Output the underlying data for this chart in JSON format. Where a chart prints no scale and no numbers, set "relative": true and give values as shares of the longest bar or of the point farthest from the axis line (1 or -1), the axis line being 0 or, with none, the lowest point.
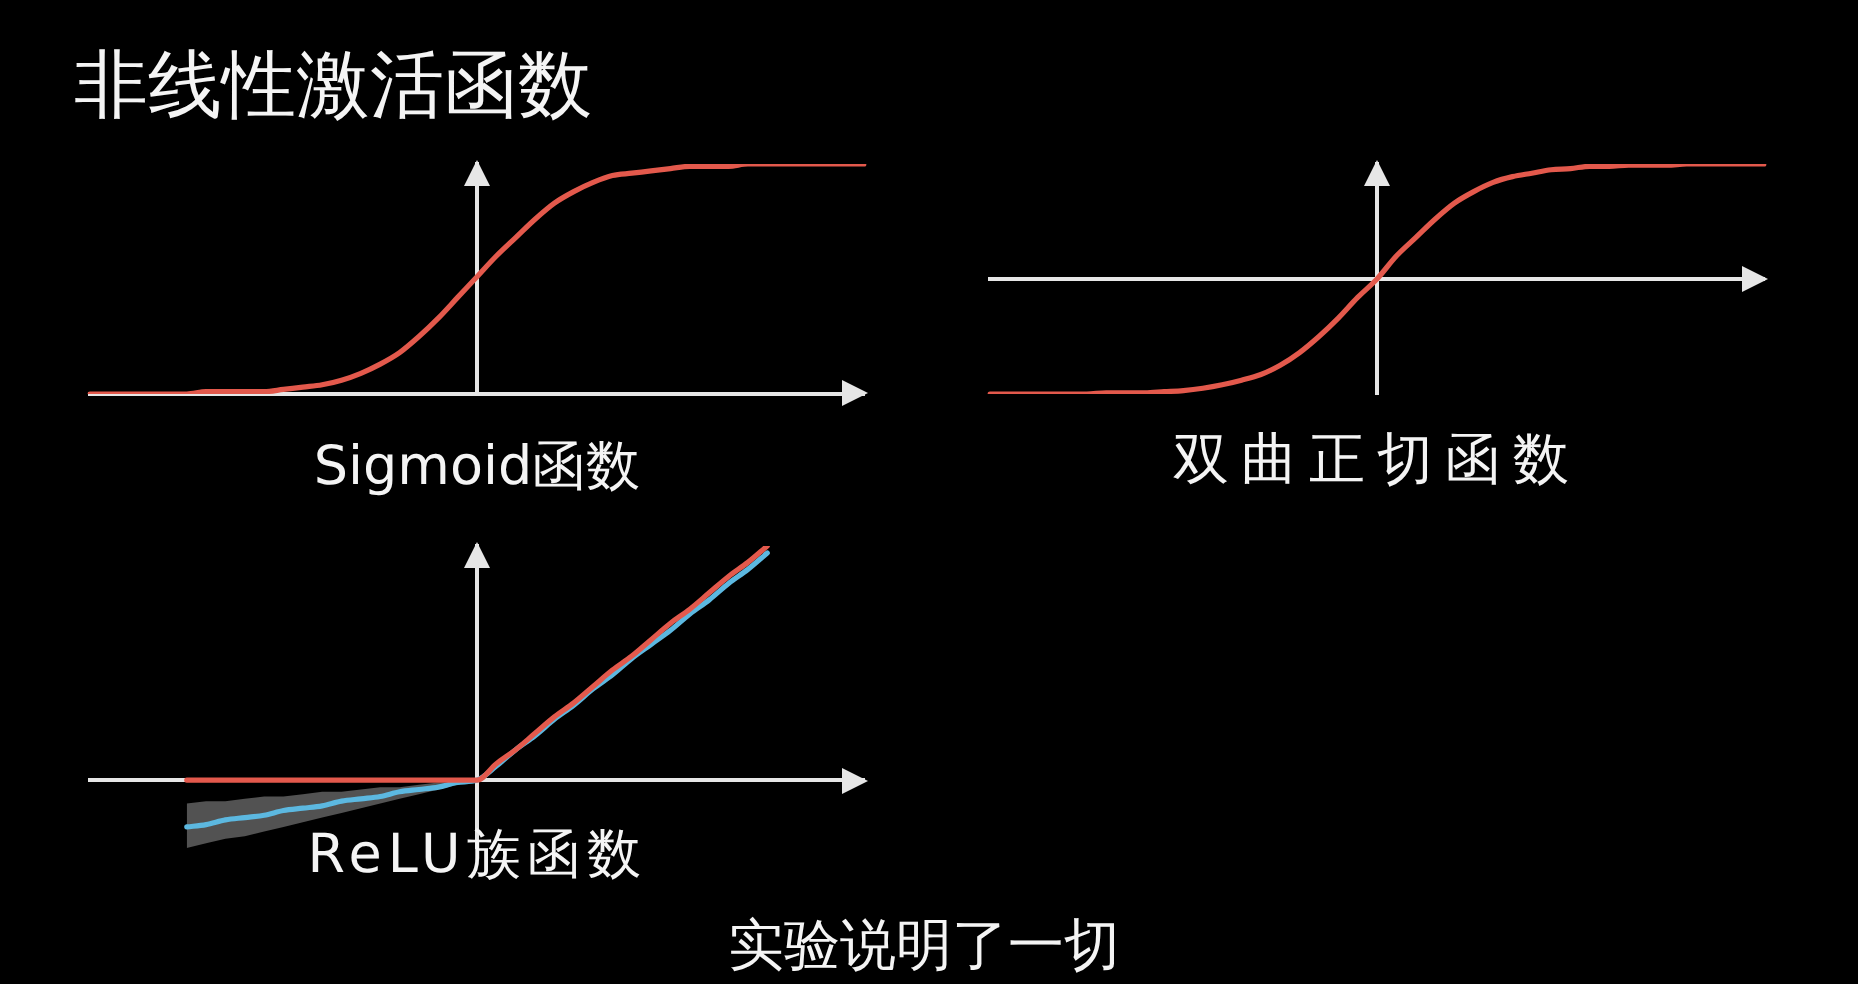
{
  "chart_data": [
    {
      "type": "line",
      "title": "非线性激活函数",
      "xlabel": "Sigmoid函数",
      "relative": true,
      "categories": [
        null,
        null,
        null,
        null,
        null,
        null,
        null,
        null,
        null,
        null,
        null,
        null,
        null,
        null,
        null,
        null,
        null,
        null,
        null,
        null,
        null,
        null,
        null,
        null,
        null,
        null,
        null,
        null,
        null,
        null,
        null,
        null,
        null,
        null,
        null,
        null,
        null,
        null,
        null,
        null,
        null
      ],
      "series": [
        {
          "color": "#e3594c",
          "values": [
            0,
            0,
            0,
            0,
            0,
            0,
            0.01,
            0.01,
            0.01,
            0.01,
            0.02,
            0.03,
            0.04,
            0.06,
            0.09,
            0.13,
            0.18,
            0.25,
            0.33,
            0.42,
            0.51,
            0.6,
            0.68,
            0.76,
            0.83,
            0.88,
            0.92,
            0.95,
            0.96,
            0.97,
            0.98,
            0.99,
            0.99,
            0.99,
            1,
            1,
            1,
            1,
            1,
            1,
            1
          ]
        }
      ]
    },
    {
      "type": "line",
      "xlabel": "双曲正切函数",
      "relative": true,
      "categories": [
        null,
        null,
        null,
        null,
        null,
        null,
        null,
        null,
        null,
        null,
        null,
        null,
        null,
        null,
        null,
        null,
        null,
        null,
        null,
        null,
        null,
        null,
        null,
        null,
        null,
        null,
        null,
        null,
        null,
        null,
        null,
        null,
        null,
        null,
        null,
        null,
        null,
        null,
        null,
        null,
        null
      ],
      "series": [
        {
          "color": "#e3594c",
          "values": [
            -1,
            -1,
            -1,
            -1,
            -1,
            -1,
            -0.99,
            -0.99,
            -0.99,
            -0.98,
            -0.97,
            -0.95,
            -0.92,
            -0.88,
            -0.83,
            -0.75,
            -0.64,
            -0.5,
            -0.34,
            -0.16,
            0,
            0.2,
            0.36,
            0.52,
            0.66,
            0.76,
            0.84,
            0.89,
            0.92,
            0.95,
            0.96,
            0.98,
            0.98,
            0.99,
            0.99,
            0.99,
            1,
            1,
            1,
            1,
            1
          ]
        }
      ]
    },
    {
      "type": "line",
      "xlabel": "ReLU族函数",
      "annotations": [
        "实验说明了一切"
      ],
      "relative": true,
      "categories": [
        null,
        null,
        null,
        null,
        null,
        null,
        null,
        null,
        null,
        null,
        null,
        null,
        null,
        null,
        null,
        null,
        null,
        null,
        null,
        null,
        null,
        null,
        null,
        null,
        null,
        null,
        null,
        null,
        null,
        null,
        null,
        null,
        null,
        null,
        null,
        null,
        null,
        null,
        null,
        null,
        null
      ],
      "series": [
        {
          "color": "#e3594c",
          "values": [
            null,
            null,
            null,
            null,
            null,
            0,
            0,
            0,
            0,
            0,
            0,
            0,
            0,
            0,
            0,
            0,
            0,
            0,
            0,
            0,
            0,
            0.07,
            0.13,
            0.2,
            0.27,
            0.33,
            0.4,
            0.47,
            0.53,
            0.6,
            0.67,
            0.73,
            0.8,
            0.87,
            0.93,
            1,
            null,
            null,
            null,
            null,
            null
          ]
        },
        {
          "color": "#5cb8e0",
          "values": [
            null,
            null,
            null,
            null,
            null,
            -0.2,
            -0.19,
            -0.17,
            -0.16,
            -0.15,
            -0.13,
            -0.12,
            -0.11,
            -0.09,
            -0.08,
            -0.07,
            -0.05,
            -0.04,
            -0.03,
            -0.01,
            0,
            0.06,
            0.13,
            0.19,
            0.26,
            0.32,
            0.39,
            0.45,
            0.52,
            0.58,
            0.64,
            0.71,
            0.77,
            0.84,
            0.9,
            0.97,
            null,
            null,
            null,
            null,
            null
          ],
          "upper": [
            null,
            null,
            null,
            null,
            null,
            -0.1,
            -0.09,
            -0.09,
            -0.08,
            -0.07,
            -0.07,
            -0.06,
            -0.05,
            -0.05,
            -0.04,
            -0.03,
            -0.03,
            -0.02,
            -0.01,
            -0.01,
            0,
            null,
            null,
            null,
            null,
            null,
            null,
            null,
            null,
            null,
            null,
            null,
            null,
            null,
            null,
            null,
            null,
            null,
            null,
            null,
            null
          ],
          "lower": [
            null,
            null,
            null,
            null,
            null,
            -0.29,
            -0.27,
            -0.25,
            -0.24,
            -0.22,
            -0.2,
            -0.18,
            -0.16,
            -0.14,
            -0.12,
            -0.1,
            -0.08,
            -0.06,
            -0.04,
            -0.02,
            0,
            null,
            null,
            null,
            null,
            null,
            null,
            null,
            null,
            null,
            null,
            null,
            null,
            null,
            null,
            null,
            null,
            null,
            null,
            null,
            null
          ]
        }
      ]
    }
  ]
}
